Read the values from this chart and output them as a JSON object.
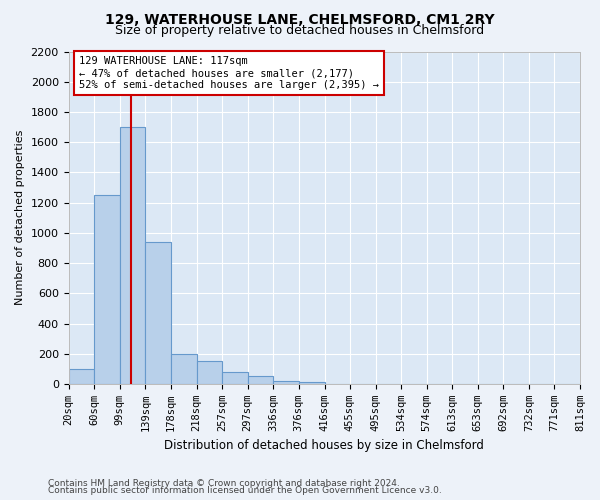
{
  "title": "129, WATERHOUSE LANE, CHELMSFORD, CM1 2RY",
  "subtitle": "Size of property relative to detached houses in Chelmsford",
  "xlabel": "Distribution of detached houses by size in Chelmsford",
  "ylabel": "Number of detached properties",
  "footnote1": "Contains HM Land Registry data © Crown copyright and database right 2024.",
  "footnote2": "Contains public sector information licensed under the Open Government Licence v3.0.",
  "annotation_line1": "129 WATERHOUSE LANE: 117sqm",
  "annotation_line2": "← 47% of detached houses are smaller (2,177)",
  "annotation_line3": "52% of semi-detached houses are larger (2,395) →",
  "property_sqm": 117,
  "bin_edges": [
    20,
    60,
    99,
    139,
    178,
    218,
    257,
    297,
    336,
    376,
    416,
    455,
    495,
    534,
    574,
    613,
    653,
    692,
    732,
    771,
    811
  ],
  "bin_counts": [
    100,
    1250,
    1700,
    940,
    200,
    150,
    80,
    50,
    20,
    10,
    0,
    0,
    0,
    0,
    0,
    0,
    0,
    0,
    0,
    0
  ],
  "bar_color": "#b8d0ea",
  "bar_edge_color": "#6699cc",
  "vline_color": "#cc0000",
  "vline_x": 117,
  "annotation_box_color": "#cc0000",
  "ylim": [
    0,
    2200
  ],
  "yticks": [
    0,
    200,
    400,
    600,
    800,
    1000,
    1200,
    1400,
    1600,
    1800,
    2000,
    2200
  ],
  "bg_color": "#edf2f9",
  "plot_bg_color": "#dce8f5",
  "grid_color": "#ffffff",
  "title_fontsize": 10,
  "subtitle_fontsize": 9,
  "ylabel_fontsize": 8,
  "xlabel_fontsize": 8.5,
  "tick_fontsize": 7.5,
  "footnote_fontsize": 6.5
}
